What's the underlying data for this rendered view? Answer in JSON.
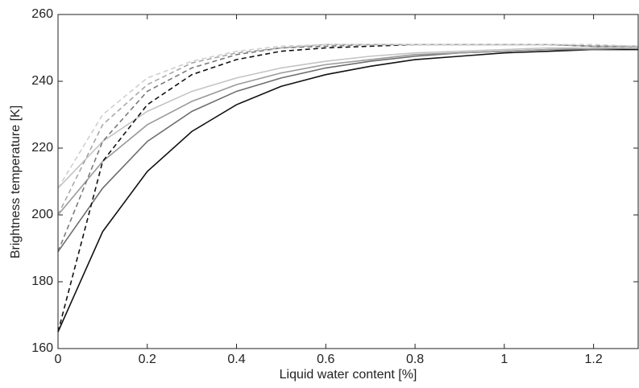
{
  "chart_data": {
    "type": "line",
    "x_label": "Liquid water content [%]",
    "y_label": "Brightness temperature [K]",
    "x": [
      0,
      0.1,
      0.2,
      0.3,
      0.4,
      0.5,
      0.6,
      0.7,
      0.8,
      0.9,
      1.0,
      1.1,
      1.2,
      1.3
    ],
    "series": [
      {
        "color": "#111111",
        "dash": false,
        "values": [
          165,
          195,
          213,
          225,
          233,
          238.5,
          242,
          244.5,
          246.5,
          247.5,
          248.5,
          249,
          249.5,
          249.5
        ]
      },
      {
        "color": "#6e6e6e",
        "dash": false,
        "values": [
          189,
          208,
          222,
          231,
          237,
          241,
          244,
          246,
          247.5,
          248.5,
          249,
          249.5,
          249.5,
          250
        ]
      },
      {
        "color": "#9a9a9a",
        "dash": false,
        "values": [
          200,
          216,
          227,
          234,
          239,
          242.5,
          245,
          246.5,
          248,
          248.5,
          249,
          249.5,
          250,
          250
        ]
      },
      {
        "color": "#c4c4c4",
        "dash": false,
        "values": [
          208,
          222,
          231,
          237,
          241,
          244,
          246,
          247.5,
          248.5,
          249,
          249.5,
          250,
          250,
          250
        ]
      },
      {
        "color": "#111111",
        "dash": true,
        "values": [
          165,
          216,
          233,
          242,
          246.5,
          249,
          250,
          250.5,
          251,
          251,
          251,
          251,
          250.5,
          250.5
        ]
      },
      {
        "color": "#7a7a7a",
        "dash": true,
        "values": [
          189,
          222,
          237,
          244,
          248,
          250,
          250.5,
          251,
          251,
          251,
          251,
          251,
          250.5,
          250.5
        ]
      },
      {
        "color": "#a8a8a8",
        "dash": true,
        "values": [
          200,
          227,
          239,
          245.5,
          248.5,
          250,
          251,
          251,
          251,
          251,
          251,
          251,
          250.5,
          250.5
        ]
      },
      {
        "color": "#d0d0d0",
        "dash": true,
        "values": [
          208,
          230,
          241,
          246,
          249,
          250.5,
          251,
          251,
          251,
          251,
          251,
          251,
          251,
          250.5
        ]
      }
    ],
    "xlim": [
      0,
      1.3
    ],
    "xticks": [
      0,
      0.2,
      0.4,
      0.6,
      0.8,
      1,
      1.2
    ],
    "ylim": [
      160,
      260
    ],
    "yticks": [
      160,
      180,
      200,
      220,
      240,
      260
    ],
    "grid": false
  }
}
